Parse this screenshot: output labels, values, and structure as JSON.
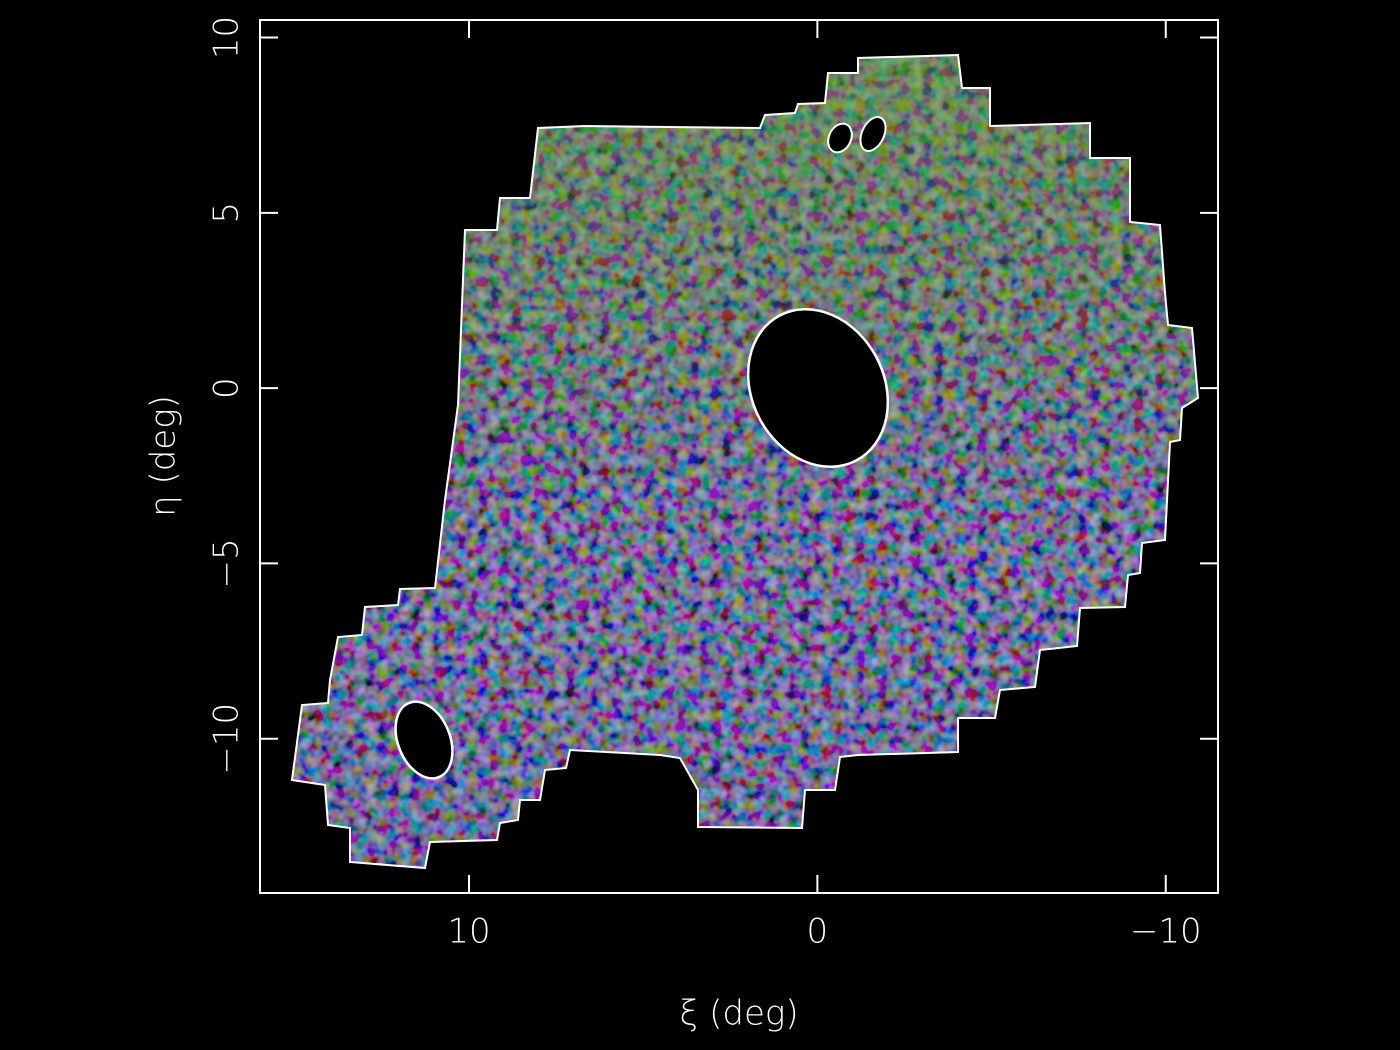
{
  "chart_data": {
    "type": "image",
    "xlabel": "ξ (deg)",
    "ylabel": "η (deg)",
    "xlim": [
      16,
      -11.5
    ],
    "ylim": [
      -14.4,
      10.5
    ],
    "xticks": [
      10,
      0,
      {
        "value": -10,
        "label": "−10"
      }
    ],
    "yticks": [
      10,
      5,
      0,
      {
        "value": -5,
        "label": "−5"
      },
      {
        "value": -10,
        "label": "−10"
      }
    ],
    "axis_color": "#ffffff"
  }
}
